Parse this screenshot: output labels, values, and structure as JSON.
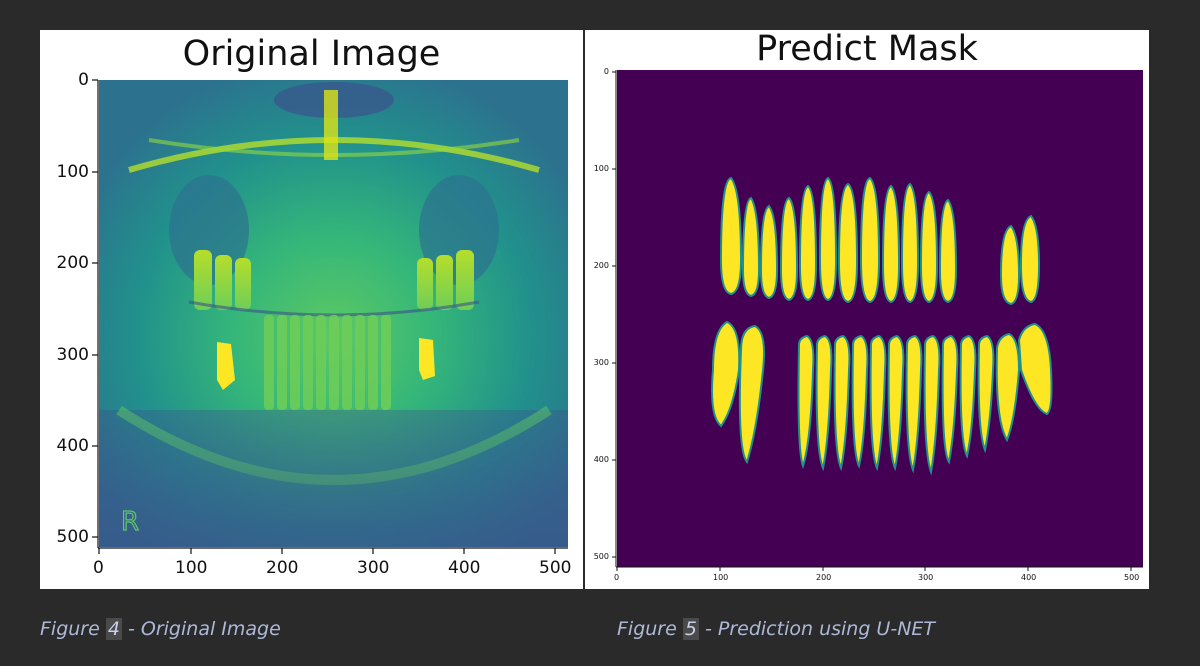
{
  "left_panel": {
    "title": "Original Image",
    "y_ticks": [
      "0",
      "100",
      "200",
      "300",
      "400",
      "500"
    ],
    "x_ticks": [
      "0",
      "100",
      "200",
      "300",
      "400",
      "500"
    ],
    "image_marker": "R"
  },
  "right_panel": {
    "title": "Predict Mask",
    "y_ticks": [
      "0",
      "100",
      "200",
      "300",
      "400",
      "500"
    ],
    "x_ticks": [
      "0",
      "100",
      "200",
      "300",
      "400",
      "500"
    ]
  },
  "captions": {
    "left": {
      "prefix": "Figure ",
      "number": "4",
      "suffix": " - Original Image"
    },
    "right": {
      "prefix": "Figure ",
      "number": "5",
      "suffix": " - Prediction using U-NET"
    }
  },
  "colors": {
    "background": "#2a2a2a",
    "viridis_dark": "#440154",
    "viridis_mid": "#21918c",
    "viridis_yellow": "#fde725",
    "caption_text": "#aeb8d8"
  }
}
